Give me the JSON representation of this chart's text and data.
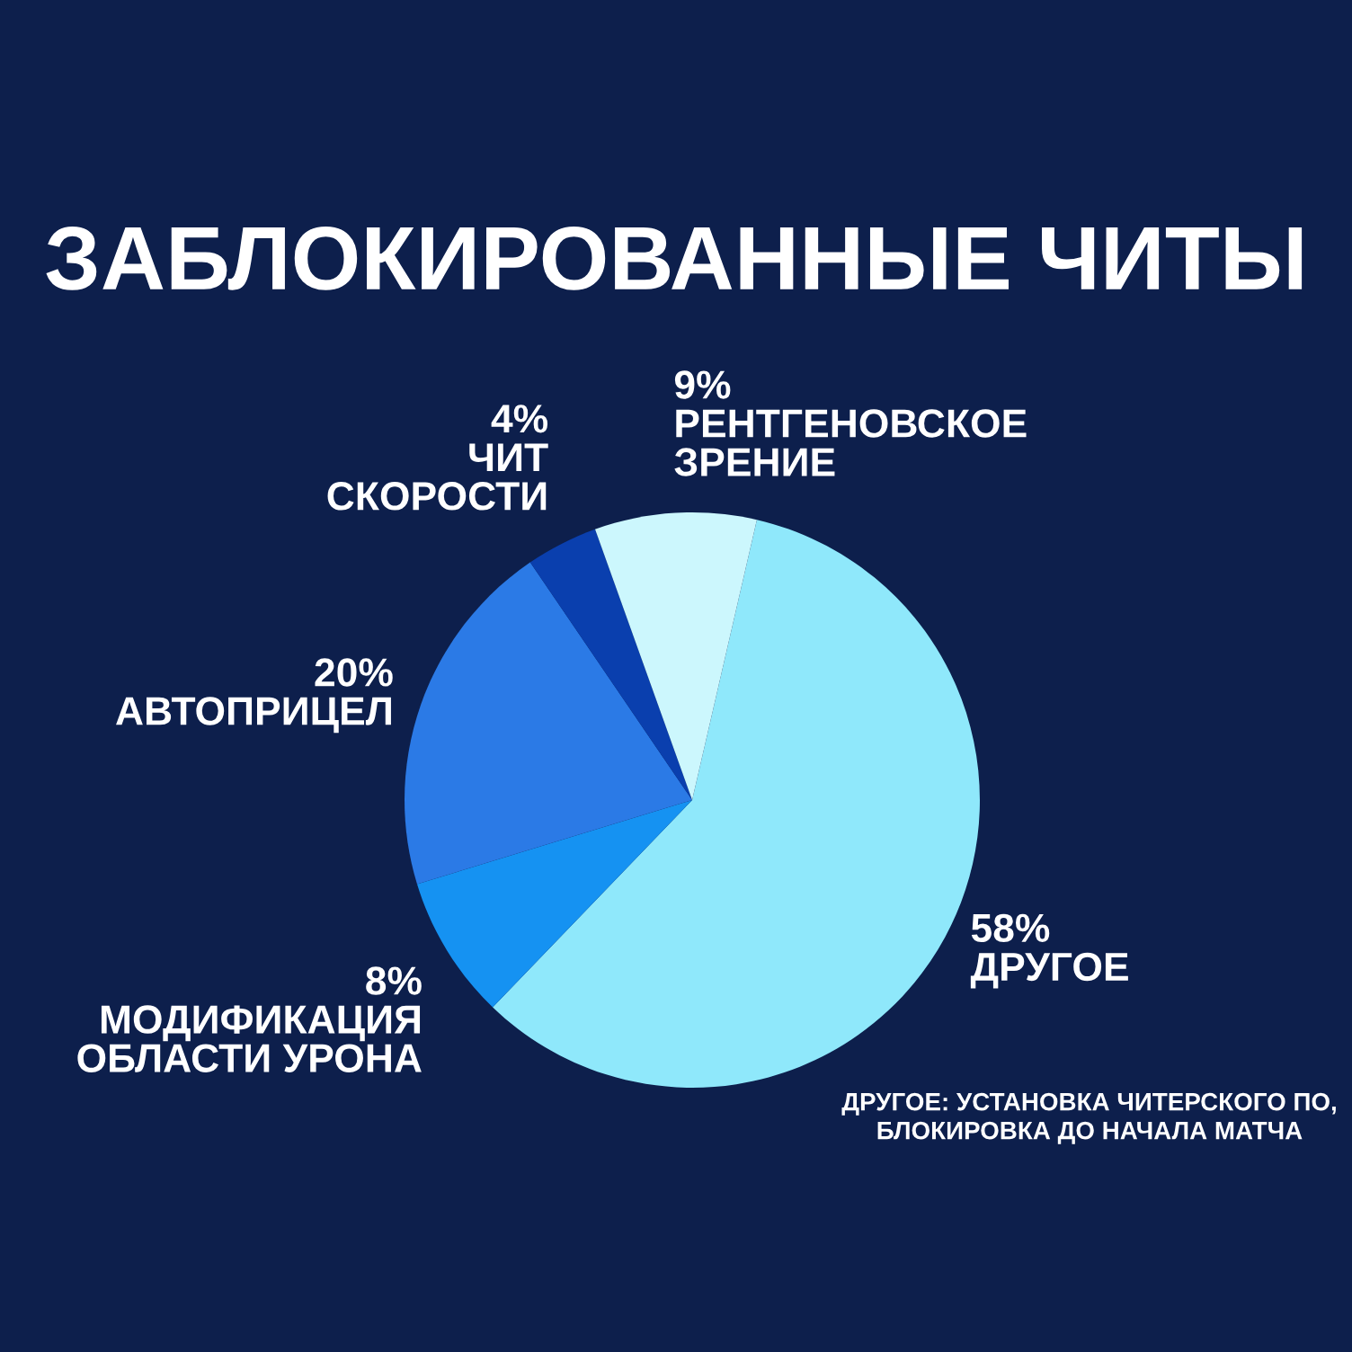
{
  "chart_data": {
    "type": "pie",
    "title": "ЗАБЛОКИРОВАННЫЕ ЧИТЫ",
    "categories": [
      "ДРУГОЕ",
      "МОДИФИКАЦИЯ ОБЛАСТИ УРОНА",
      "АВТОПРИЦЕЛ",
      "ЧИТ СКОРОСТИ",
      "РЕНТГЕНОВСКОЕ ЗРЕНИЕ"
    ],
    "values": [
      58,
      8,
      20,
      4,
      9
    ],
    "colors": [
      "#8fe8fb",
      "#1592f2",
      "#2b7ae6",
      "#0a3fae",
      "#ccf7fd"
    ],
    "value_labels": [
      "58%",
      "8%",
      "20%",
      "4%",
      "9%"
    ],
    "annotations": [
      "ДРУГОЕ: УСТАНОВКА ЧИТЕРСКОГО ПО, БЛОКИРОВКА ДО НАЧАЛА МАТЧА"
    ]
  }
}
